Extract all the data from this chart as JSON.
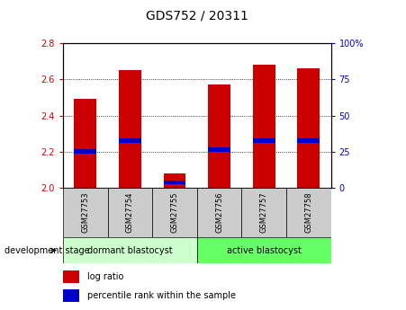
{
  "title": "GDS752 / 20311",
  "samples": [
    "GSM27753",
    "GSM27754",
    "GSM27755",
    "GSM27756",
    "GSM27757",
    "GSM27758"
  ],
  "log_ratio_values": [
    2.49,
    2.65,
    2.08,
    2.57,
    2.68,
    2.66
  ],
  "log_ratio_base": 2.0,
  "percentile_values": [
    2.2,
    2.26,
    2.03,
    2.21,
    2.26,
    2.26
  ],
  "ylim_left": [
    2.0,
    2.8
  ],
  "ylim_right": [
    0,
    100
  ],
  "yticks_left": [
    2.0,
    2.2,
    2.4,
    2.6,
    2.8
  ],
  "yticks_right": [
    0,
    25,
    50,
    75,
    100
  ],
  "ytick_labels_right": [
    "0",
    "25",
    "50",
    "75",
    "100%"
  ],
  "bar_color": "#cc0000",
  "percentile_color": "#0000cc",
  "bar_width": 0.5,
  "groups": [
    {
      "label": "dormant blastocyst",
      "indices": [
        0,
        1,
        2
      ],
      "color": "#ccffcc"
    },
    {
      "label": "active blastocyst",
      "indices": [
        3,
        4,
        5
      ],
      "color": "#66ff66"
    }
  ],
  "group_label": "development stage",
  "legend_items": [
    {
      "label": "log ratio",
      "color": "#cc0000"
    },
    {
      "label": "percentile rank within the sample",
      "color": "#0000cc"
    }
  ],
  "grid_color": "black",
  "grid_style": "dotted",
  "bg_xticklabel": "#cccccc",
  "left_tick_color": "#cc0000",
  "right_tick_color": "#0000cc",
  "grid_lines": [
    2.2,
    2.4,
    2.6
  ],
  "title_fontsize": 10,
  "tick_fontsize": 7,
  "sample_fontsize": 6,
  "group_fontsize": 7,
  "legend_fontsize": 7
}
